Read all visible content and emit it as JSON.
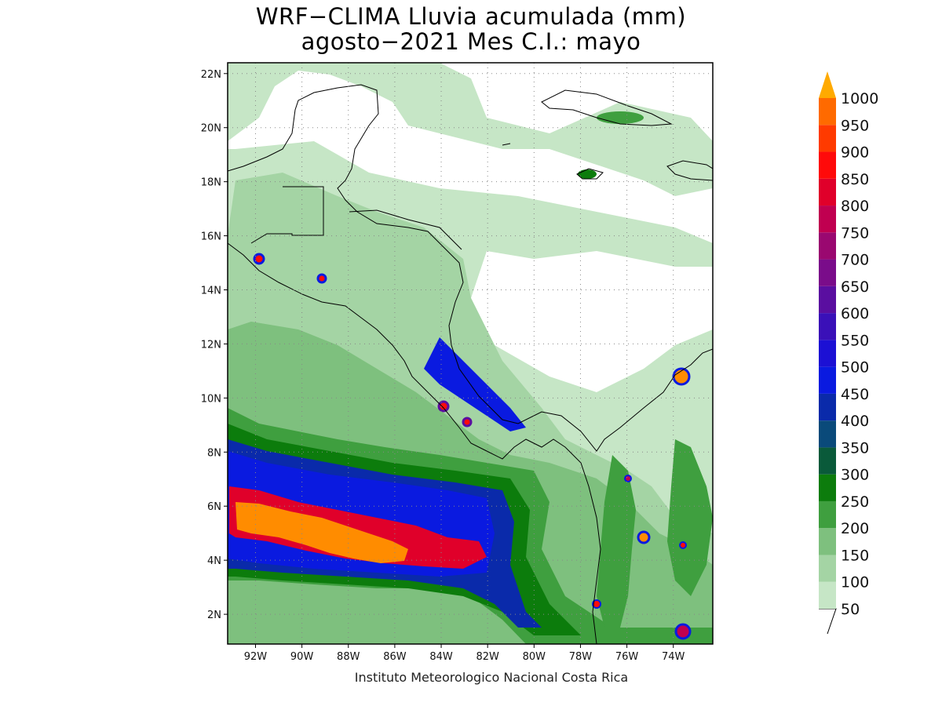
{
  "title_line1": "WRF−CLIMA Lluvia acumulada (mm)",
  "title_line2": "agosto−2021 Mes C.I.: mayo",
  "credit": "Instituto Meteorologico Nacional Costa Rica",
  "map": {
    "lon_range": [
      -93.2,
      -72.3
    ],
    "lat_range": [
      0.9,
      22.4
    ],
    "lon_ticks": [
      {
        "value": -92,
        "label": "92W"
      },
      {
        "value": -90,
        "label": "90W"
      },
      {
        "value": -88,
        "label": "88W"
      },
      {
        "value": -86,
        "label": "86W"
      },
      {
        "value": -84,
        "label": "84W"
      },
      {
        "value": -82,
        "label": "82W"
      },
      {
        "value": -80,
        "label": "80W"
      },
      {
        "value": -78,
        "label": "78W"
      },
      {
        "value": -76,
        "label": "76W"
      },
      {
        "value": -74,
        "label": "74W"
      }
    ],
    "lat_ticks": [
      {
        "value": 22,
        "label": "22N"
      },
      {
        "value": 20,
        "label": "20N"
      },
      {
        "value": 18,
        "label": "18N"
      },
      {
        "value": 16,
        "label": "16N"
      },
      {
        "value": 14,
        "label": "14N"
      },
      {
        "value": 12,
        "label": "12N"
      },
      {
        "value": 10,
        "label": "10N"
      },
      {
        "value": 8,
        "label": "8N"
      },
      {
        "value": 6,
        "label": "6N"
      },
      {
        "value": 4,
        "label": "4N"
      },
      {
        "value": 2,
        "label": "2N"
      }
    ]
  },
  "colorbar": {
    "levels": [
      {
        "value": 50,
        "label": "50",
        "color": "#c6e6c6"
      },
      {
        "value": 100,
        "label": "100",
        "color": "#a4d4a4"
      },
      {
        "value": 150,
        "label": "150",
        "color": "#7ec07e"
      },
      {
        "value": 200,
        "label": "200",
        "color": "#3f9f3f"
      },
      {
        "value": 250,
        "label": "250",
        "color": "#0c7c0c"
      },
      {
        "value": 300,
        "label": "300",
        "color": "#0a5a3a"
      },
      {
        "value": 350,
        "label": "350",
        "color": "#0a4a7a"
      },
      {
        "value": 400,
        "label": "400",
        "color": "#0a2aaa"
      },
      {
        "value": 450,
        "label": "450",
        "color": "#0a1ae0"
      },
      {
        "value": 500,
        "label": "500",
        "color": "#1c10d4"
      },
      {
        "value": 550,
        "label": "550",
        "color": "#3a10b8"
      },
      {
        "value": 600,
        "label": "600",
        "color": "#5a0ea0"
      },
      {
        "value": 650,
        "label": "650",
        "color": "#7a0c8a"
      },
      {
        "value": 700,
        "label": "700",
        "color": "#9a0870"
      },
      {
        "value": 750,
        "label": "750",
        "color": "#c00050"
      },
      {
        "value": 800,
        "label": "800",
        "color": "#e0002a"
      },
      {
        "value": 850,
        "label": "850",
        "color": "#ff0a0a"
      },
      {
        "value": 900,
        "label": "900",
        "color": "#ff3a00"
      },
      {
        "value": 950,
        "label": "950",
        "color": "#ff6a00"
      },
      {
        "value": 1000,
        "label": "1000",
        "color": "#ff8c00"
      }
    ],
    "over_color": "#ffaa00"
  }
}
